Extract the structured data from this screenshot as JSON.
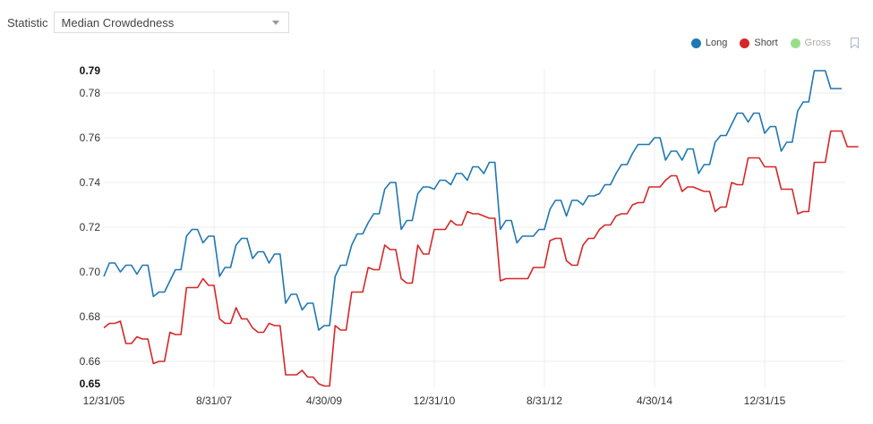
{
  "controls": {
    "statistic_label": "Statistic",
    "statistic_value": "Median Crowdedness"
  },
  "legend": [
    {
      "name": "Long",
      "color": "#1f77b4",
      "active": true
    },
    {
      "name": "Short",
      "color": "#d62728",
      "active": true
    },
    {
      "name": "Gross",
      "color": "#98df8a",
      "active": false
    }
  ],
  "bookmark_icon": "bookmark-icon",
  "chart_data": {
    "type": "line",
    "title": "",
    "xlabel": "",
    "ylabel": "Median Crowdedness",
    "ylim": [
      0.65,
      0.79
    ],
    "yticks": [
      0.65,
      0.66,
      0.68,
      0.7,
      0.72,
      0.74,
      0.76,
      0.78,
      0.79
    ],
    "yticks_bold": [
      0.65,
      0.79
    ],
    "xtick_labels": [
      "12/31/05",
      "8/31/07",
      "4/30/09",
      "12/31/10",
      "8/31/12",
      "4/30/14",
      "12/31/15"
    ],
    "xtick_month_index": [
      0,
      20,
      40,
      60,
      80,
      100,
      120
    ],
    "grid": true,
    "legend_position": "top-right",
    "x_frequency": "monthly",
    "x_start": "12/31/05",
    "series": [
      {
        "name": "Long",
        "color": "#1f77b4",
        "values": [
          0.698,
          0.704,
          0.704,
          0.7,
          0.703,
          0.703,
          0.699,
          0.703,
          0.703,
          0.689,
          0.691,
          0.691,
          0.696,
          0.701,
          0.701,
          0.716,
          0.719,
          0.719,
          0.713,
          0.716,
          0.716,
          0.698,
          0.702,
          0.702,
          0.712,
          0.715,
          0.715,
          0.706,
          0.709,
          0.709,
          0.704,
          0.708,
          0.708,
          0.686,
          0.69,
          0.69,
          0.683,
          0.686,
          0.686,
          0.674,
          0.676,
          0.676,
          0.698,
          0.703,
          0.703,
          0.712,
          0.717,
          0.717,
          0.722,
          0.726,
          0.726,
          0.737,
          0.74,
          0.74,
          0.719,
          0.723,
          0.723,
          0.735,
          0.738,
          0.738,
          0.737,
          0.741,
          0.741,
          0.739,
          0.744,
          0.744,
          0.741,
          0.747,
          0.747,
          0.744,
          0.749,
          0.749,
          0.719,
          0.723,
          0.723,
          0.713,
          0.716,
          0.716,
          0.716,
          0.719,
          0.719,
          0.728,
          0.732,
          0.732,
          0.725,
          0.732,
          0.732,
          0.73,
          0.734,
          0.734,
          0.735,
          0.739,
          0.739,
          0.744,
          0.748,
          0.748,
          0.753,
          0.757,
          0.757,
          0.757,
          0.76,
          0.76,
          0.75,
          0.754,
          0.754,
          0.75,
          0.755,
          0.755,
          0.744,
          0.748,
          0.748,
          0.758,
          0.761,
          0.761,
          0.766,
          0.771,
          0.771,
          0.767,
          0.771,
          0.771,
          0.762,
          0.765,
          0.765,
          0.754,
          0.758,
          0.758,
          0.772,
          0.776,
          0.776,
          0.79,
          0.79,
          0.79,
          0.782,
          0.782,
          0.782
        ]
      },
      {
        "name": "Short",
        "color": "#d62728",
        "values": [
          0.675,
          0.677,
          0.677,
          0.678,
          0.668,
          0.668,
          0.671,
          0.67,
          0.67,
          0.659,
          0.66,
          0.66,
          0.673,
          0.672,
          0.672,
          0.693,
          0.693,
          0.693,
          0.697,
          0.694,
          0.694,
          0.679,
          0.677,
          0.677,
          0.684,
          0.679,
          0.679,
          0.675,
          0.673,
          0.673,
          0.677,
          0.676,
          0.676,
          0.654,
          0.654,
          0.654,
          0.656,
          0.653,
          0.653,
          0.65,
          0.649,
          0.649,
          0.676,
          0.674,
          0.674,
          0.691,
          0.691,
          0.691,
          0.702,
          0.701,
          0.701,
          0.712,
          0.71,
          0.71,
          0.697,
          0.695,
          0.695,
          0.712,
          0.708,
          0.708,
          0.719,
          0.719,
          0.719,
          0.723,
          0.721,
          0.721,
          0.727,
          0.726,
          0.726,
          0.725,
          0.724,
          0.724,
          0.696,
          0.697,
          0.697,
          0.697,
          0.697,
          0.697,
          0.702,
          0.702,
          0.702,
          0.714,
          0.715,
          0.715,
          0.705,
          0.703,
          0.703,
          0.712,
          0.715,
          0.715,
          0.719,
          0.721,
          0.721,
          0.725,
          0.726,
          0.726,
          0.73,
          0.731,
          0.731,
          0.738,
          0.738,
          0.738,
          0.741,
          0.743,
          0.743,
          0.736,
          0.738,
          0.738,
          0.737,
          0.736,
          0.736,
          0.727,
          0.729,
          0.729,
          0.74,
          0.739,
          0.739,
          0.751,
          0.751,
          0.751,
          0.747,
          0.747,
          0.747,
          0.737,
          0.737,
          0.737,
          0.726,
          0.727,
          0.727,
          0.749,
          0.749,
          0.749,
          0.763,
          0.763,
          0.763,
          0.756,
          0.756,
          0.756
        ]
      }
    ]
  }
}
